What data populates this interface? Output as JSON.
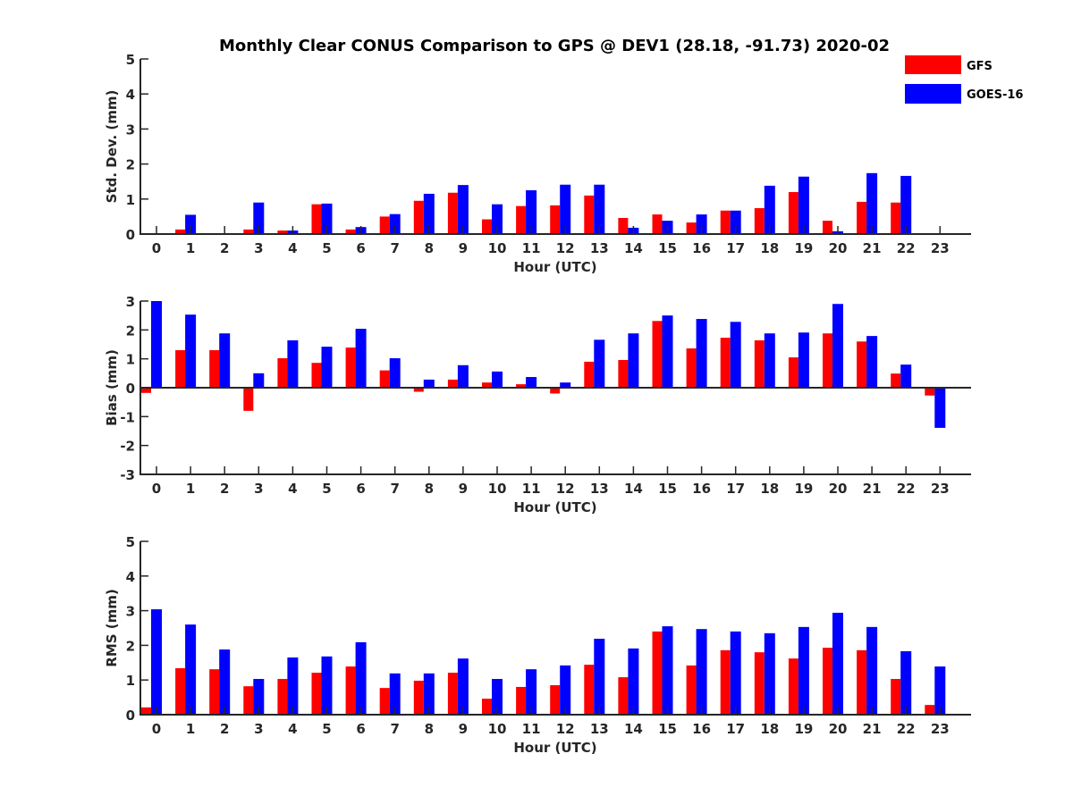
{
  "chart_data": {
    "title": "Monthly Clear CONUS Comparison to GPS @ DEV1 (28.18, -91.73) 2020-02",
    "legend": {
      "placement": "top-right",
      "entries": [
        {
          "name": "GFS",
          "color": "#ff0000"
        },
        {
          "name": "GOES-16",
          "color": "#0000ff"
        }
      ]
    },
    "panels": [
      {
        "type": "bar",
        "ylabel": "Std. Dev. (mm)",
        "xlabel": "Hour (UTC)",
        "ylim": [
          0,
          5
        ],
        "yticks": [
          "0",
          "1",
          "2",
          "3",
          "4",
          "5"
        ],
        "yticks_values": [
          0,
          1,
          2,
          3,
          4,
          5
        ],
        "categories": [
          "0",
          "1",
          "2",
          "3",
          "4",
          "5",
          "6",
          "7",
          "8",
          "9",
          "10",
          "11",
          "12",
          "13",
          "14",
          "15",
          "16",
          "17",
          "18",
          "19",
          "20",
          "21",
          "22",
          "23"
        ],
        "series": [
          {
            "name": "GFS",
            "color": "#ff0000",
            "values": [
              0,
              0.13,
              0,
              0.13,
              0.1,
              0.85,
              0.13,
              0.5,
              0.95,
              1.18,
              0.42,
              0.8,
              0.82,
              1.1,
              0.46,
              0.56,
              0.33,
              0.67,
              0.74,
              1.2,
              0.38,
              0.92,
              0.9,
              0
            ]
          },
          {
            "name": "GOES-16",
            "color": "#0000ff",
            "values": [
              0,
              0.55,
              0,
              0.9,
              0.1,
              0.87,
              0.2,
              0.57,
              1.15,
              1.4,
              0.85,
              1.25,
              1.41,
              1.41,
              0.18,
              0.38,
              0.56,
              0.67,
              1.38,
              1.64,
              0.08,
              1.74,
              1.66,
              0
            ]
          }
        ]
      },
      {
        "type": "bar",
        "ylabel": "Bias (mm)",
        "xlabel": "Hour (UTC)",
        "ylim": [
          -3,
          3
        ],
        "yticks": [
          "-3",
          "-2",
          "-1",
          "0",
          "1",
          "2",
          "3"
        ],
        "yticks_values": [
          -3,
          -2,
          -1,
          0,
          1,
          2,
          3
        ],
        "categories": [
          "0",
          "1",
          "2",
          "3",
          "4",
          "5",
          "6",
          "7",
          "8",
          "9",
          "10",
          "11",
          "12",
          "13",
          "14",
          "15",
          "16",
          "17",
          "18",
          "19",
          "20",
          "21",
          "22",
          "23"
        ],
        "series": [
          {
            "name": "GFS",
            "color": "#ff0000",
            "values": [
              -0.18,
              1.3,
              1.3,
              -0.8,
              1.02,
              0.86,
              1.39,
              0.6,
              -0.14,
              0.28,
              0.18,
              0.12,
              -0.2,
              0.9,
              0.96,
              2.31,
              1.36,
              1.73,
              1.64,
              1.05,
              1.88,
              1.6,
              0.49,
              -0.27
            ]
          },
          {
            "name": "GOES-16",
            "color": "#0000ff",
            "values": [
              3.0,
              2.53,
              1.88,
              0.5,
              1.64,
              1.42,
              2.04,
              1.02,
              0.28,
              0.78,
              0.56,
              0.37,
              0.18,
              1.66,
              1.88,
              2.5,
              2.38,
              2.28,
              1.88,
              1.91,
              2.9,
              1.79,
              0.8,
              -1.39
            ]
          }
        ]
      },
      {
        "type": "bar",
        "ylabel": "RMS (mm)",
        "xlabel": "Hour (UTC)",
        "ylim": [
          0,
          5
        ],
        "yticks": [
          "0",
          "1",
          "2",
          "3",
          "4",
          "5"
        ],
        "yticks_values": [
          0,
          1,
          2,
          3,
          4,
          5
        ],
        "categories": [
          "0",
          "1",
          "2",
          "3",
          "4",
          "5",
          "6",
          "7",
          "8",
          "9",
          "10",
          "11",
          "12",
          "13",
          "14",
          "15",
          "16",
          "17",
          "18",
          "19",
          "20",
          "21",
          "22",
          "23"
        ],
        "series": [
          {
            "name": "GFS",
            "color": "#ff0000",
            "values": [
              0.21,
              1.34,
              1.31,
              0.82,
              1.03,
              1.21,
              1.39,
              0.77,
              0.98,
              1.21,
              0.46,
              0.8,
              0.85,
              1.44,
              1.08,
              2.4,
              1.42,
              1.86,
              1.8,
              1.62,
              1.93,
              1.86,
              1.03,
              0.28
            ]
          },
          {
            "name": "GOES-16",
            "color": "#0000ff",
            "values": [
              3.04,
              2.6,
              1.88,
              1.03,
              1.65,
              1.68,
              2.09,
              1.19,
              1.19,
              1.62,
              1.03,
              1.31,
              1.42,
              2.19,
              1.91,
              2.55,
              2.47,
              2.4,
              2.35,
              2.53,
              2.94,
              2.53,
              1.83,
              1.39
            ]
          }
        ]
      }
    ]
  }
}
